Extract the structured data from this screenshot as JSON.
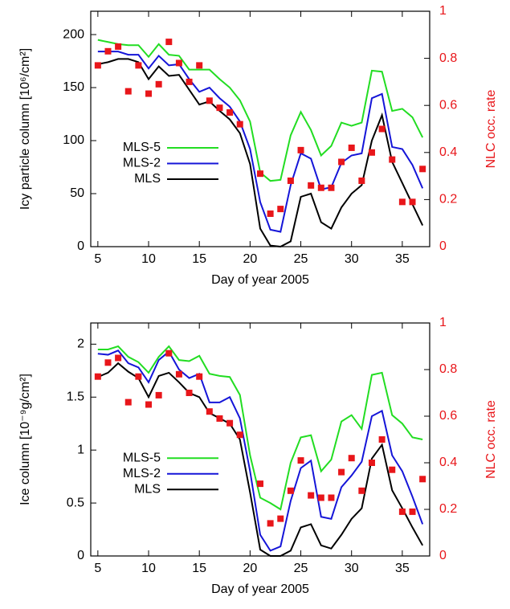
{
  "chart_data": [
    {
      "type": "line",
      "xlabel": "Day of year 2005",
      "ylabel": "Icy particle column [10⁶/cm²]",
      "y2label": "NLC occ. rate",
      "x": [
        5,
        6,
        7,
        8,
        9,
        10,
        11,
        12,
        13,
        14,
        15,
        16,
        17,
        18,
        19,
        20,
        21,
        22,
        23,
        24,
        25,
        26,
        27,
        28,
        29,
        30,
        31,
        32,
        33,
        34,
        35,
        36,
        37
      ],
      "xlim": [
        4.3,
        37.7
      ],
      "xticks": [
        5,
        10,
        15,
        20,
        25,
        30,
        35
      ],
      "ylim": [
        0,
        222
      ],
      "yticks": [
        0,
        50,
        100,
        150,
        200
      ],
      "y2lim": [
        0,
        1
      ],
      "y2ticks": [
        0,
        0.2,
        0.4,
        0.6,
        0.8,
        1
      ],
      "legend": "left",
      "series": [
        {
          "name": "MLS-5",
          "color": "#22dd22",
          "values": [
            195,
            193,
            191,
            190,
            190,
            179,
            191,
            181,
            180,
            167,
            167,
            167,
            158,
            150,
            138,
            118,
            70,
            62,
            63,
            105,
            127,
            110,
            86,
            95,
            117,
            114,
            117,
            166,
            165,
            128,
            130,
            122,
            103
          ]
        },
        {
          "name": "MLS-2",
          "color": "#1515d8",
          "values": [
            184,
            184,
            184,
            181,
            181,
            168,
            180,
            171,
            172,
            158,
            146,
            150,
            140,
            132,
            118,
            92,
            42,
            16,
            14,
            58,
            88,
            83,
            54,
            56,
            79,
            86,
            88,
            140,
            144,
            94,
            92,
            77,
            55
          ]
        },
        {
          "name": "MLS",
          "color": "#000000",
          "values": [
            172,
            174,
            177,
            177,
            174,
            158,
            170,
            161,
            162,
            148,
            134,
            137,
            128,
            120,
            107,
            78,
            17,
            1,
            0,
            5,
            47,
            50,
            23,
            17,
            37,
            50,
            58,
            100,
            124,
            80,
            60,
            40,
            20
          ]
        },
        {
          "type": "scatter",
          "axis": "y2",
          "color": "#e8161a",
          "values": [
            0.77,
            0.83,
            0.85,
            0.66,
            0.77,
            0.65,
            0.69,
            0.87,
            0.78,
            0.7,
            0.77,
            0.62,
            0.59,
            0.57,
            0.52,
            null,
            0.31,
            0.14,
            0.16,
            0.28,
            0.41,
            0.26,
            0.25,
            0.25,
            0.36,
            0.42,
            0.28,
            0.4,
            0.5,
            0.37,
            0.19,
            0.19,
            0.33
          ]
        }
      ]
    },
    {
      "type": "line",
      "xlabel": "Day of year 2005",
      "ylabel": "Ice column [10⁻⁹g/cm²]",
      "y2label": "NLC occ. rate",
      "x": [
        5,
        6,
        7,
        8,
        9,
        10,
        11,
        12,
        13,
        14,
        15,
        16,
        17,
        18,
        19,
        20,
        21,
        22,
        23,
        24,
        25,
        26,
        27,
        28,
        29,
        30,
        31,
        32,
        33,
        34,
        35,
        36,
        37
      ],
      "xlim": [
        4.3,
        37.7
      ],
      "xticks": [
        5,
        10,
        15,
        20,
        25,
        30,
        35
      ],
      "ylim": [
        0,
        2.2
      ],
      "yticks": [
        0,
        0.5,
        1,
        1.5,
        2
      ],
      "y2lim": [
        0,
        1
      ],
      "y2ticks": [
        0,
        0.2,
        0.4,
        0.6,
        0.8,
        1
      ],
      "legend": "left",
      "series": [
        {
          "name": "MLS-5",
          "color": "#22dd22",
          "values": [
            1.95,
            1.95,
            1.98,
            1.88,
            1.83,
            1.73,
            1.88,
            1.98,
            1.85,
            1.84,
            1.89,
            1.72,
            1.7,
            1.69,
            1.52,
            0.95,
            0.55,
            0.5,
            0.44,
            0.88,
            1.12,
            1.14,
            0.8,
            0.91,
            1.27,
            1.33,
            1.2,
            1.71,
            1.73,
            1.33,
            1.25,
            1.12,
            1.1
          ]
        },
        {
          "name": "MLS-2",
          "color": "#1515d8",
          "values": [
            1.91,
            1.9,
            1.94,
            1.82,
            1.78,
            1.64,
            1.85,
            1.93,
            1.76,
            1.68,
            1.72,
            1.45,
            1.45,
            1.5,
            1.3,
            0.8,
            0.2,
            0.05,
            0.09,
            0.52,
            0.83,
            0.9,
            0.37,
            0.35,
            0.65,
            0.76,
            0.89,
            1.32,
            1.37,
            0.95,
            0.8,
            0.56,
            0.3
          ]
        },
        {
          "name": "MLS",
          "color": "#000000",
          "values": [
            1.69,
            1.73,
            1.82,
            1.74,
            1.68,
            1.5,
            1.7,
            1.73,
            1.64,
            1.54,
            1.5,
            1.35,
            1.3,
            1.25,
            1.1,
            0.6,
            0.06,
            0,
            0,
            0.05,
            0.27,
            0.3,
            0.1,
            0.07,
            0.2,
            0.35,
            0.45,
            0.92,
            1.05,
            0.62,
            0.45,
            0.27,
            0.1
          ]
        },
        {
          "type": "scatter",
          "axis": "y2",
          "color": "#e8161a",
          "values": [
            0.77,
            0.83,
            0.85,
            0.66,
            0.77,
            0.65,
            0.69,
            0.87,
            0.78,
            0.7,
            0.77,
            0.62,
            0.59,
            0.57,
            0.52,
            null,
            0.31,
            0.14,
            0.16,
            0.28,
            0.41,
            0.26,
            0.25,
            0.25,
            0.36,
            0.42,
            0.28,
            0.4,
            0.5,
            0.37,
            0.19,
            0.19,
            0.33
          ]
        }
      ]
    }
  ]
}
